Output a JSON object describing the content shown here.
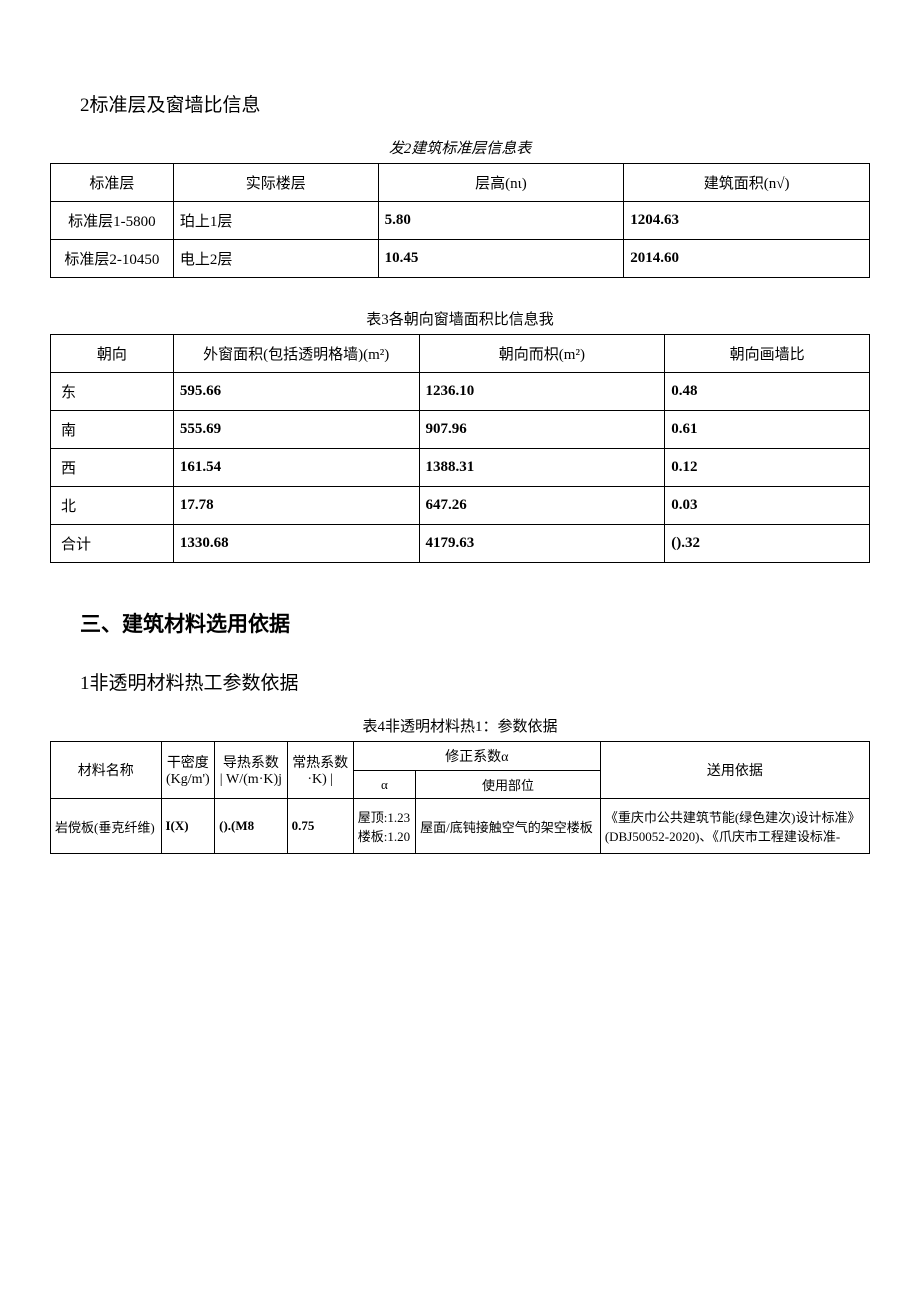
{
  "section1": {
    "title": "2标准层及窗墙比信息"
  },
  "table2": {
    "caption": "发2建筑标准层信息表",
    "headers": [
      "标准层",
      "实际楼层",
      "层高(nι)",
      "建筑面积(n√)"
    ],
    "rows": [
      [
        "标准层1-5800",
        "珀上1层",
        "5.80",
        "1204.63"
      ],
      [
        "标准层2-10450",
        "电上2层",
        "10.45",
        "2014.60"
      ]
    ]
  },
  "table3": {
    "caption": "表3各朝向窗墙面积比信息我",
    "headers": [
      "朝向",
      "外窗面积(包括透明格墙)(m²)",
      "朝向而枳(m²)",
      "朝向画墙比"
    ],
    "rows": [
      [
        "东",
        "595.66",
        "1236.10",
        "0.48"
      ],
      [
        "南",
        "555.69",
        "907.96",
        "0.61"
      ],
      [
        "西",
        "161.54",
        "1388.31",
        "0.12"
      ],
      [
        "北",
        "17.78",
        "647.26",
        "0.03"
      ],
      [
        "合计",
        "1330.68",
        "4179.63",
        "().32"
      ]
    ]
  },
  "section2": {
    "title": "三、建筑材料选用依据"
  },
  "section3": {
    "title": "1非透明材料热工参数依据"
  },
  "table4": {
    "caption": "表4非透明材料热1：参数依据",
    "headers_row1": [
      "材料名称",
      "干密度",
      "导热系数",
      "常热系数",
      "修正系数α",
      "送用依据"
    ],
    "headers_row1_sub": [
      "(Kg/m')",
      "| W/(m·K)j",
      "·K) |"
    ],
    "headers_row2": [
      "α",
      "使用部位"
    ],
    "rows": [
      {
        "name": "岩傥板(垂克纤维)",
        "density": "I(X)",
        "thermal": "().(M8",
        "constant": "0.75",
        "alpha": "屋顶:1.23\n楼板:1.20",
        "location": "屋面/底钝接触空气的架空楼板",
        "basis": "《重庆巾公共建筑节能(绿色建次)设计标准》\n(DBJ50052-2020)、《爪庆市工程建设标准-"
      }
    ]
  }
}
